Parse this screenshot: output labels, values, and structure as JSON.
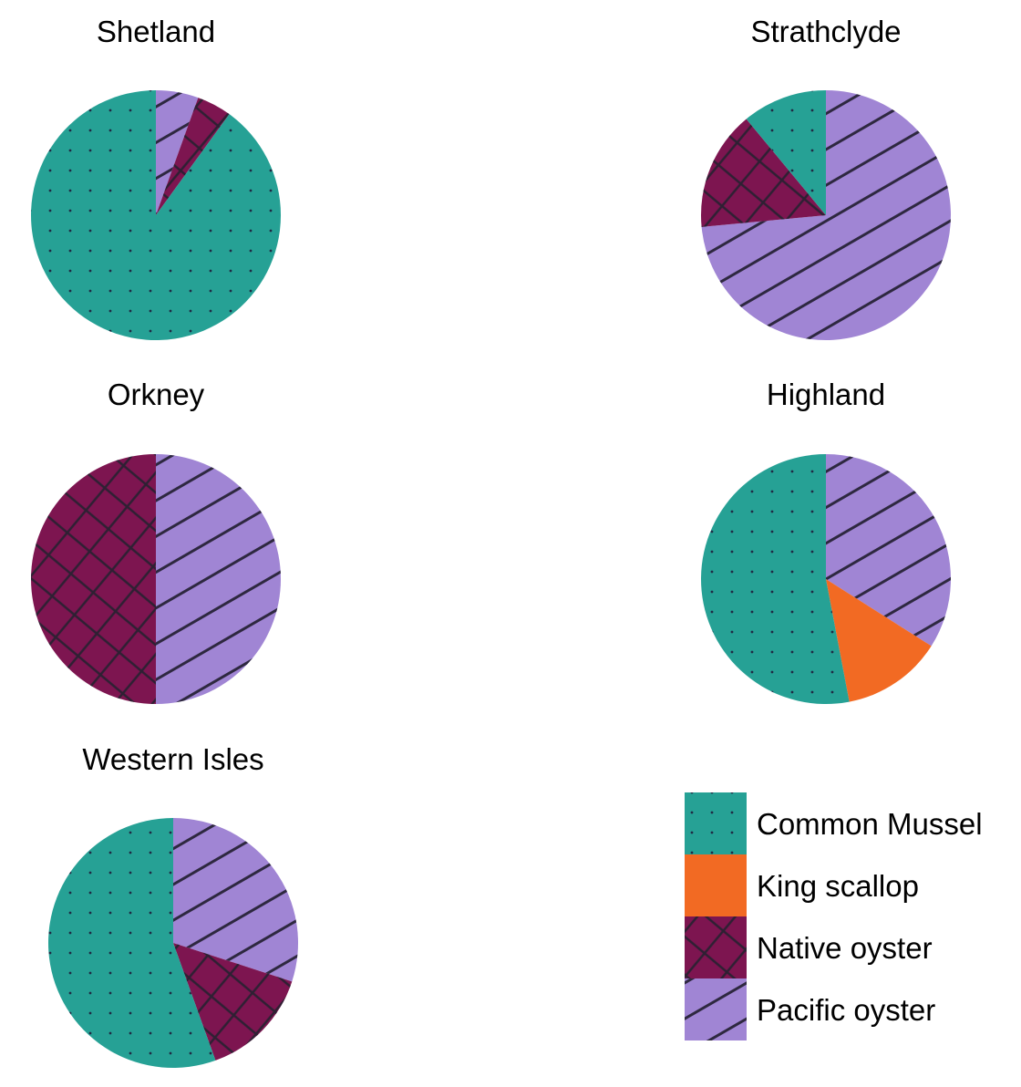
{
  "chart_data": {
    "type": "pie",
    "categories": [
      "Common Mussel",
      "King scallop",
      "Native oyster",
      "Pacific oyster"
    ],
    "colors": {
      "Common Mussel": "#26a195",
      "King scallop": "#f26a23",
      "Native oyster": "#7d1550",
      "Pacific oyster": "#a085d4"
    },
    "patterns": {
      "Common Mussel": "dots",
      "King scallop": "none",
      "Native oyster": "crosshatch",
      "Pacific oyster": "diagonal"
    },
    "legend_position": "bottom-right",
    "pies": [
      {
        "title": "Shetland",
        "slices": [
          {
            "category": "Pacific oyster",
            "value": 0.055
          },
          {
            "category": "Native oyster",
            "value": 0.045
          },
          {
            "category": "Common Mussel",
            "value": 0.9
          },
          {
            "category": "King scallop",
            "value": 0
          }
        ]
      },
      {
        "title": "Strathclyde",
        "slices": [
          {
            "category": "Pacific oyster",
            "value": 0.735
          },
          {
            "category": "Native oyster",
            "value": 0.155
          },
          {
            "category": "Common Mussel",
            "value": 0.11
          },
          {
            "category": "King scallop",
            "value": 0
          }
        ]
      },
      {
        "title": "Orkney",
        "slices": [
          {
            "category": "Pacific oyster",
            "value": 0.5
          },
          {
            "category": "Native oyster",
            "value": 0.5
          },
          {
            "category": "Common Mussel",
            "value": 0
          },
          {
            "category": "King scallop",
            "value": 0
          }
        ]
      },
      {
        "title": "Highland",
        "slices": [
          {
            "category": "Pacific oyster",
            "value": 0.34
          },
          {
            "category": "King scallop",
            "value": 0.13
          },
          {
            "category": "Common Mussel",
            "value": 0.53
          },
          {
            "category": "Native oyster",
            "value": 0
          }
        ]
      },
      {
        "title": "Western Isles",
        "slices": [
          {
            "category": "Pacific oyster",
            "value": 0.3
          },
          {
            "category": "Native oyster",
            "value": 0.145
          },
          {
            "category": "Common Mussel",
            "value": 0.555
          },
          {
            "category": "King scallop",
            "value": 0
          }
        ]
      }
    ]
  }
}
